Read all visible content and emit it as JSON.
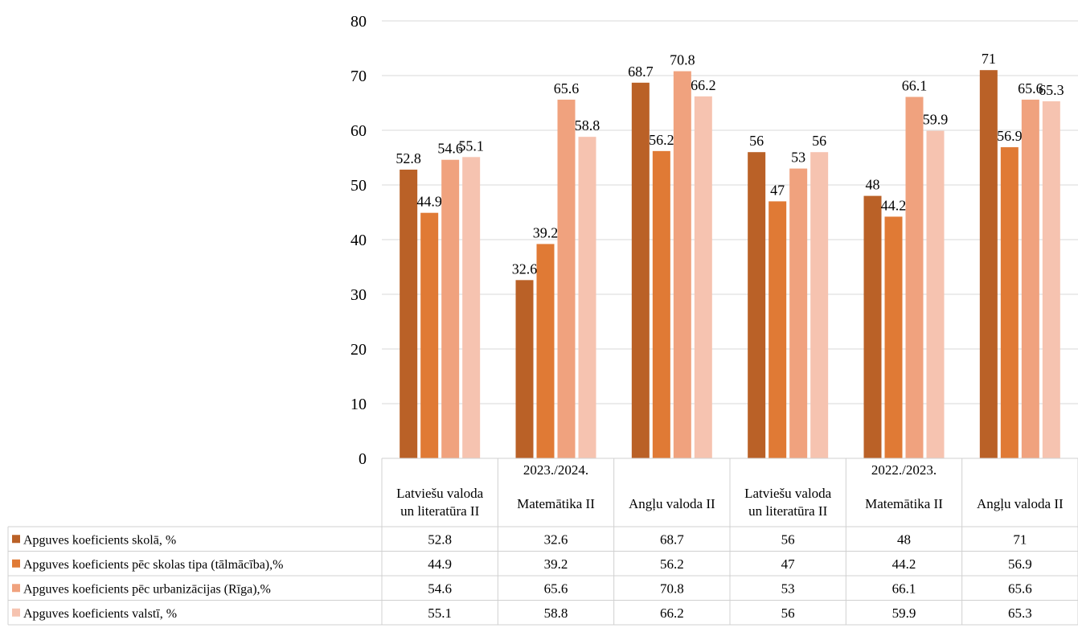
{
  "chart_data": {
    "type": "bar",
    "title": "",
    "xlabel": "",
    "ylabel": "",
    "ylim": [
      0,
      80
    ],
    "yticks": [
      0,
      10,
      20,
      30,
      40,
      50,
      60,
      70,
      80
    ],
    "grid": true,
    "legend_placement": "data-table-left",
    "categories": [
      [
        "Latviešu valoda",
        "un literatūra II"
      ],
      [
        "Matemātika II"
      ],
      [
        "Angļu valoda II"
      ],
      [
        "Latviešu valoda",
        "un literatūra II"
      ],
      [
        "Matemātika II"
      ],
      [
        "Angļu valoda II"
      ]
    ],
    "groups": [
      {
        "label": "2023./2024.",
        "span": [
          0,
          2
        ]
      },
      {
        "label": "2022./2023.",
        "span": [
          3,
          5
        ]
      }
    ],
    "series": [
      {
        "name": "Apguves koeficients skolā, %",
        "color": "#BA6127",
        "values": [
          52.8,
          32.6,
          68.7,
          56,
          48,
          71
        ]
      },
      {
        "name": "Apguves koeficients pēc skolas tipa (tālmācība),%",
        "color": "#E07A35",
        "values": [
          44.9,
          39.2,
          56.2,
          47,
          44.2,
          56.9
        ]
      },
      {
        "name": "Apguves koeficients pēc urbanizācijas (Rīga),%",
        "color": "#F0A27E",
        "values": [
          54.6,
          65.6,
          70.8,
          53,
          66.1,
          65.6
        ]
      },
      {
        "name": "Apguves koeficients valstī, %",
        "color": "#F6C3B0",
        "values": [
          55.1,
          58.8,
          66.2,
          56,
          59.9,
          65.3
        ]
      }
    ]
  }
}
